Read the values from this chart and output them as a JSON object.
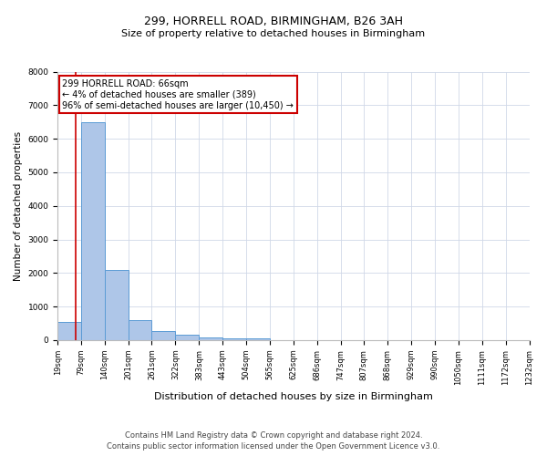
{
  "title_line1": "299, HORRELL ROAD, BIRMINGHAM, B26 3AH",
  "title_line2": "Size of property relative to detached houses in Birmingham",
  "xlabel": "Distribution of detached houses by size in Birmingham",
  "ylabel": "Number of detached properties",
  "footnote1": "Contains HM Land Registry data © Crown copyright and database right 2024.",
  "footnote2": "Contains public sector information licensed under the Open Government Licence v3.0.",
  "annotation_line1": "299 HORRELL ROAD: 66sqm",
  "annotation_line2": "← 4% of detached houses are smaller (389)",
  "annotation_line3": "96% of semi-detached houses are larger (10,450) →",
  "bar_edges": [
    19,
    79,
    140,
    201,
    261,
    322,
    383,
    443,
    504,
    565,
    625,
    686,
    747,
    807,
    868,
    929,
    990,
    1050,
    1111,
    1172,
    1232
  ],
  "bar_heights": [
    550,
    6500,
    2100,
    600,
    280,
    170,
    90,
    60,
    40,
    0,
    0,
    0,
    0,
    0,
    0,
    0,
    0,
    0,
    0,
    0
  ],
  "bar_color": "#aec6e8",
  "bar_edge_color": "#5b9bd5",
  "property_line_x": 66,
  "property_line_color": "#cc0000",
  "ylim": [
    0,
    8000
  ],
  "xlim": [
    19,
    1232
  ],
  "annotation_box_color": "#ffffff",
  "annotation_box_edge": "#cc0000",
  "grid_color": "#d0d8e8",
  "background_color": "#ffffff",
  "tick_labels": [
    "19sqm",
    "79sqm",
    "140sqm",
    "201sqm",
    "261sqm",
    "322sqm",
    "383sqm",
    "443sqm",
    "504sqm",
    "565sqm",
    "625sqm",
    "686sqm",
    "747sqm",
    "807sqm",
    "868sqm",
    "929sqm",
    "990sqm",
    "1050sqm",
    "1111sqm",
    "1172sqm",
    "1232sqm"
  ],
  "title_fontsize": 9,
  "subtitle_fontsize": 8,
  "ylabel_fontsize": 7.5,
  "xlabel_fontsize": 8,
  "tick_fontsize": 6,
  "footnote_fontsize": 6,
  "annot_fontsize": 7
}
